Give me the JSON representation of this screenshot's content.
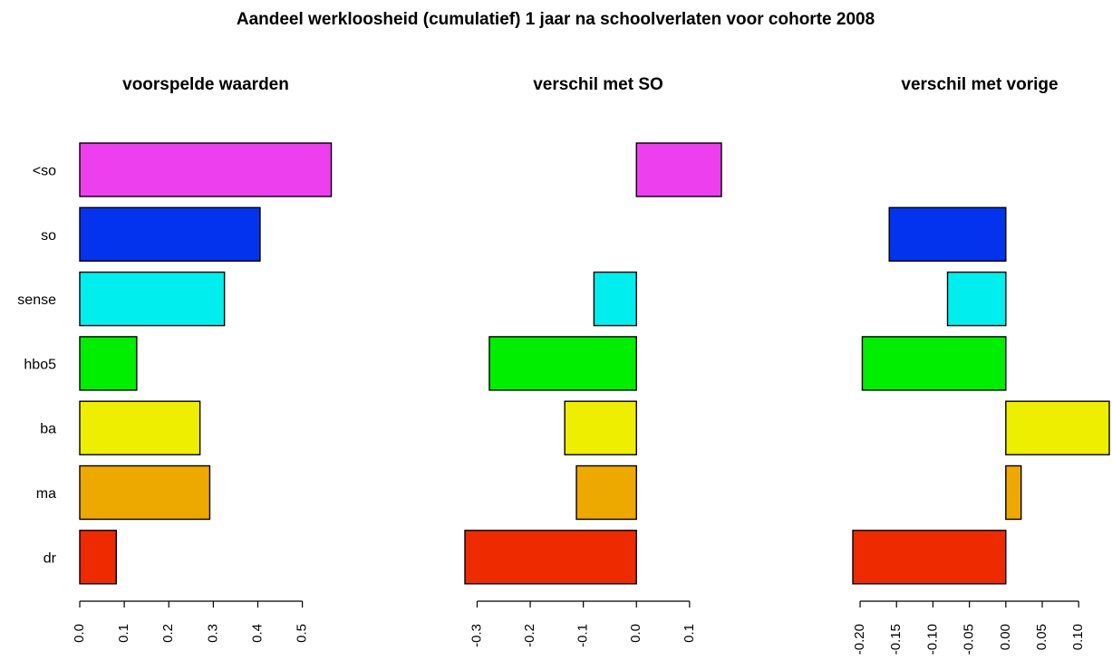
{
  "title": "Aandeel werkloosheid (cumulatief) 1 jaar na schoolverlaten voor cohorte 2008",
  "chart_data": [
    {
      "type": "bar",
      "orientation": "horizontal",
      "title": "voorspelde waarden",
      "categories": [
        "<so",
        "so",
        "sense",
        "hbo5",
        "ba",
        "ma",
        "dr"
      ],
      "values": [
        0.565,
        0.405,
        0.325,
        0.128,
        0.27,
        0.292,
        0.082
      ],
      "colors": [
        "#EE3FEE",
        "#0433EE",
        "#00EEEE",
        "#00EE00",
        "#EEEE00",
        "#EEA900",
        "#EE2A00"
      ],
      "xlim": [
        0,
        0.57
      ],
      "ticks": [
        0.0,
        0.1,
        0.2,
        0.3,
        0.4,
        0.5
      ],
      "tick_labels": [
        "0.0",
        "0.1",
        "0.2",
        "0.3",
        "0.4",
        "0.5"
      ],
      "show_category_labels": true
    },
    {
      "type": "bar",
      "orientation": "horizontal",
      "title": "verschil met SO",
      "categories": [
        "<so",
        "so",
        "sense",
        "hbo5",
        "ba",
        "ma",
        "dr"
      ],
      "values": [
        0.16,
        0.0,
        -0.08,
        -0.277,
        -0.135,
        -0.113,
        -0.323
      ],
      "colors": [
        "#EE3FEE",
        "#0433EE",
        "#00EEEE",
        "#00EE00",
        "#EEEE00",
        "#EEA900",
        "#EE2A00"
      ],
      "xlim": [
        -0.323,
        0.16
      ],
      "ticks": [
        -0.3,
        -0.2,
        -0.1,
        0.0,
        0.1
      ],
      "tick_labels": [
        "-0.3",
        "-0.2",
        "-0.1",
        "0.0",
        "0.1"
      ],
      "show_category_labels": false
    },
    {
      "type": "bar",
      "orientation": "horizontal",
      "title": "verschil met vorige",
      "categories": [
        "<so",
        "so",
        "sense",
        "hbo5",
        "ba",
        "ma",
        "dr"
      ],
      "values": [
        0.0,
        -0.16,
        -0.08,
        -0.197,
        0.142,
        0.021,
        -0.21
      ],
      "colors": [
        "#EE3FEE",
        "#0433EE",
        "#00EEEE",
        "#00EE00",
        "#EEEE00",
        "#EEA900",
        "#EE2A00"
      ],
      "xlim": [
        -0.21,
        0.142
      ],
      "ticks": [
        -0.2,
        -0.15,
        -0.1,
        -0.05,
        0.0,
        0.05,
        0.1
      ],
      "tick_labels": [
        "-0.20",
        "-0.15",
        "-0.10",
        "-0.05",
        "0.00",
        "0.05",
        "0.10"
      ],
      "show_category_labels": false
    }
  ]
}
